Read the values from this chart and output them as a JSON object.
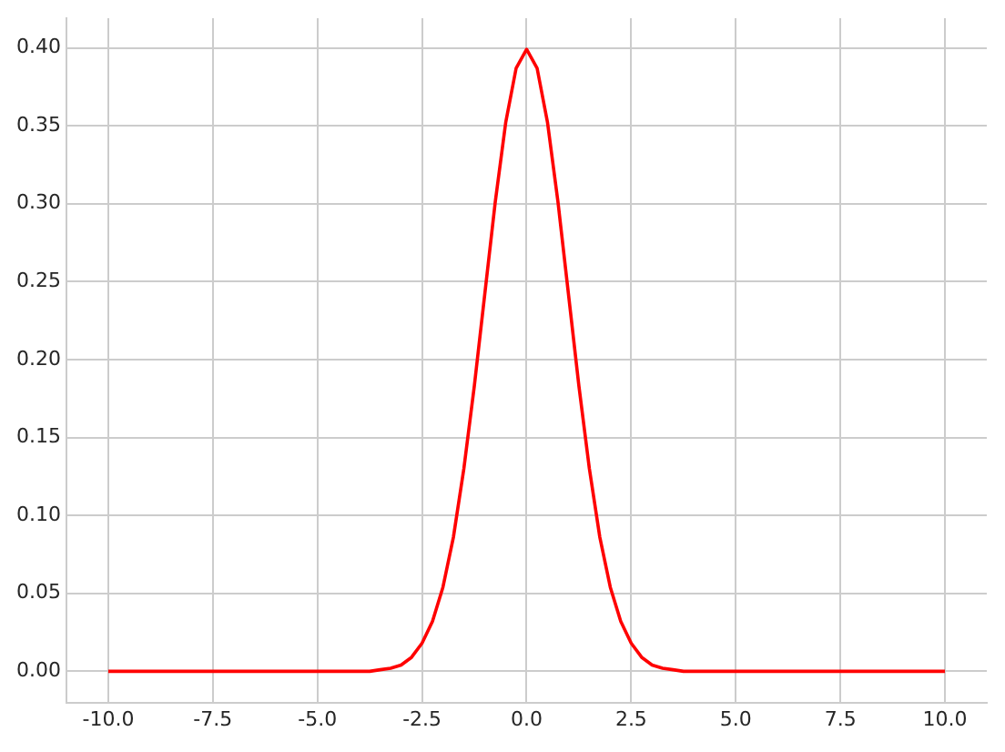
{
  "chart_data": {
    "type": "line",
    "x": [
      -10,
      -7.5,
      -5,
      -4.5,
      -4,
      -3.75,
      -3.5,
      -3.25,
      -3,
      -2.75,
      -2.5,
      -2.25,
      -2,
      -1.75,
      -1.5,
      -1.25,
      -1,
      -0.75,
      -0.5,
      -0.25,
      0,
      0.25,
      0.5,
      0.75,
      1,
      1.25,
      1.5,
      1.75,
      2,
      2.25,
      2.5,
      2.75,
      3,
      3.25,
      3.5,
      3.75,
      4,
      4.5,
      5,
      7.5,
      10
    ],
    "series": [
      {
        "color": "#ff0000",
        "values": [
          0,
          0,
          0,
          0,
          0,
          0,
          0.001,
          0.002,
          0.004,
          0.009,
          0.018,
          0.032,
          0.054,
          0.086,
          0.13,
          0.183,
          0.242,
          0.301,
          0.352,
          0.387,
          0.399,
          0.387,
          0.352,
          0.301,
          0.242,
          0.183,
          0.13,
          0.086,
          0.054,
          0.032,
          0.018,
          0.009,
          0.004,
          0.002,
          0.001,
          0,
          0,
          0,
          0,
          0,
          0
        ]
      }
    ],
    "xlim": [
      -11,
      11
    ],
    "xticks": [
      {
        "value": -10,
        "label": "-10.0"
      },
      {
        "value": -7.5,
        "label": "-7.5"
      },
      {
        "value": -5,
        "label": "-5.0"
      },
      {
        "value": -2.5,
        "label": "-2.5"
      },
      {
        "value": 0,
        "label": "0.0"
      },
      {
        "value": 2.5,
        "label": "2.5"
      },
      {
        "value": 5,
        "label": "5.0"
      },
      {
        "value": 7.5,
        "label": "7.5"
      },
      {
        "value": 10,
        "label": "10.0"
      }
    ],
    "ylim": [
      -0.02,
      0.419
    ],
    "yticks": [
      {
        "value": 0,
        "label": "0.00"
      },
      {
        "value": 0.05,
        "label": "0.05"
      },
      {
        "value": 0.1,
        "label": "0.10"
      },
      {
        "value": 0.15,
        "label": "0.15"
      },
      {
        "value": 0.2,
        "label": "0.20"
      },
      {
        "value": 0.25,
        "label": "0.25"
      },
      {
        "value": 0.3,
        "label": "0.30"
      },
      {
        "value": 0.35,
        "label": "0.35"
      },
      {
        "value": 0.4,
        "label": "0.40"
      }
    ],
    "grid": true,
    "legend": false,
    "marker": "none",
    "line_style": "solid"
  }
}
